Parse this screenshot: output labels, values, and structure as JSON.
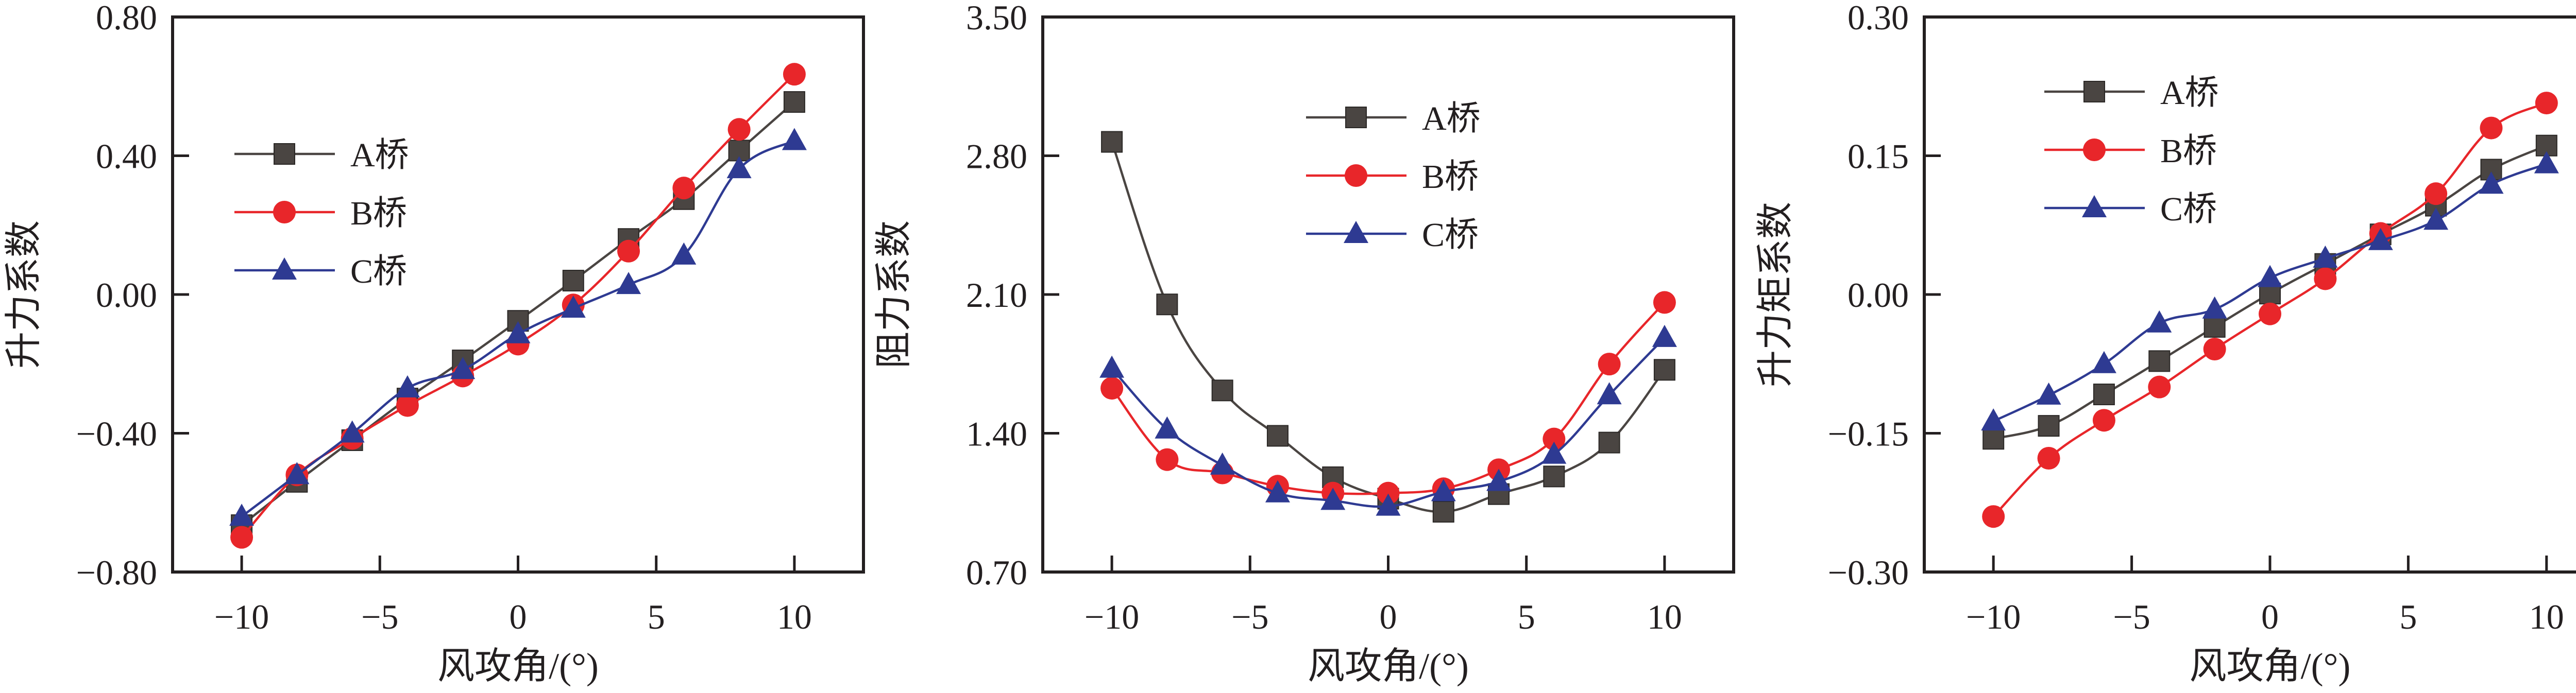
{
  "colors": {
    "A": "#4a4542",
    "B": "#e8262a",
    "C": "#2e3a92",
    "axis": "#231f20"
  },
  "chart_data": [
    {
      "type": "line",
      "title": "",
      "xlabel": "风攻角/(°)",
      "ylabel": "升力系数",
      "xlim": [
        -12.5,
        12.5
      ],
      "ylim": [
        -0.8,
        0.8
      ],
      "xticks": [
        -10,
        -5,
        0,
        5,
        10
      ],
      "xtick_labels": [
        "−10",
        "−5",
        "0",
        "5",
        "10"
      ],
      "yticks": [
        -0.8,
        -0.4,
        0.0,
        0.4,
        0.8
      ],
      "ytick_labels": [
        "−0.80",
        "−0.40",
        "0.00",
        "0.40",
        "0.80"
      ],
      "grid": false,
      "legend_position": "upper-left",
      "x": [
        -10,
        -8,
        -6,
        -4,
        -2,
        0,
        2,
        4,
        6,
        8,
        10
      ],
      "series": [
        {
          "name": "A桥",
          "key": "A",
          "marker": "square",
          "values": [
            -0.665,
            -0.54,
            -0.42,
            -0.3,
            -0.19,
            -0.076,
            0.04,
            0.16,
            0.275,
            0.415,
            0.555
          ]
        },
        {
          "name": "B桥",
          "key": "B",
          "marker": "circle",
          "values": [
            -0.7,
            -0.52,
            -0.415,
            -0.32,
            -0.235,
            -0.143,
            -0.03,
            0.125,
            0.307,
            0.476,
            0.635
          ]
        },
        {
          "name": "C桥",
          "key": "C",
          "marker": "triangle",
          "values": [
            -0.64,
            -0.52,
            -0.4,
            -0.27,
            -0.217,
            -0.114,
            -0.04,
            0.028,
            0.113,
            0.362,
            0.443
          ]
        }
      ]
    },
    {
      "type": "line",
      "title": "",
      "xlabel": "风攻角/(°)",
      "ylabel": "阻力系数",
      "xlim": [
        -12.5,
        12.5
      ],
      "ylim": [
        0.7,
        3.5
      ],
      "xticks": [
        -10,
        -5,
        0,
        5,
        10
      ],
      "xtick_labels": [
        "−10",
        "−5",
        "0",
        "5",
        "10"
      ],
      "yticks": [
        0.7,
        1.4,
        2.1,
        2.8,
        3.5
      ],
      "ytick_labels": [
        "0.70",
        "1.40",
        "2.10",
        "2.80",
        "3.50"
      ],
      "grid": false,
      "legend_position": "upper-center",
      "x": [
        -10,
        -8,
        -6,
        -4,
        -2,
        0,
        2,
        4,
        6,
        8,
        10
      ],
      "series": [
        {
          "name": "A桥",
          "key": "A",
          "marker": "square",
          "values": [
            2.87,
            2.05,
            1.616,
            1.387,
            1.178,
            1.07,
            1.004,
            1.093,
            1.182,
            1.353,
            1.72
          ]
        },
        {
          "name": "B桥",
          "key": "B",
          "marker": "circle",
          "values": [
            1.627,
            1.267,
            1.2,
            1.133,
            1.098,
            1.098,
            1.12,
            1.216,
            1.371,
            1.749,
            2.06
          ]
        },
        {
          "name": "C桥",
          "key": "C",
          "marker": "triangle",
          "values": [
            1.727,
            1.42,
            1.238,
            1.098,
            1.06,
            1.031,
            1.104,
            1.156,
            1.293,
            1.593,
            1.882
          ]
        }
      ]
    },
    {
      "type": "line",
      "title": "",
      "xlabel": "风攻角/(°)",
      "ylabel": "升力矩系数",
      "xlim": [
        -12.5,
        12.5
      ],
      "ylim": [
        -0.3,
        0.3
      ],
      "xticks": [
        -10,
        -5,
        0,
        5,
        10
      ],
      "xtick_labels": [
        "−10",
        "−5",
        "0",
        "5",
        "10"
      ],
      "yticks": [
        -0.3,
        -0.15,
        0.0,
        0.15,
        0.3
      ],
      "ytick_labels": [
        "−0.30",
        "−0.15",
        "0.00",
        "0.15",
        "0.30"
      ],
      "grid": false,
      "legend_position": "upper-left",
      "x": [
        -10,
        -8,
        -6,
        -4,
        -2,
        0,
        2,
        4,
        6,
        8,
        10
      ],
      "series": [
        {
          "name": "A桥",
          "key": "A",
          "marker": "square",
          "values": [
            -0.156,
            -0.142,
            -0.108,
            -0.072,
            -0.035,
            0.001,
            0.033,
            0.065,
            0.096,
            0.135,
            0.161
          ]
        },
        {
          "name": "B桥",
          "key": "B",
          "marker": "circle",
          "values": [
            -0.24,
            -0.177,
            -0.136,
            -0.1,
            -0.059,
            -0.021,
            0.017,
            0.066,
            0.109,
            0.18,
            0.207
          ]
        },
        {
          "name": "C桥",
          "key": "C",
          "marker": "triangle",
          "values": [
            -0.137,
            -0.109,
            -0.075,
            -0.031,
            -0.016,
            0.018,
            0.039,
            0.058,
            0.08,
            0.119,
            0.141
          ]
        }
      ]
    }
  ]
}
